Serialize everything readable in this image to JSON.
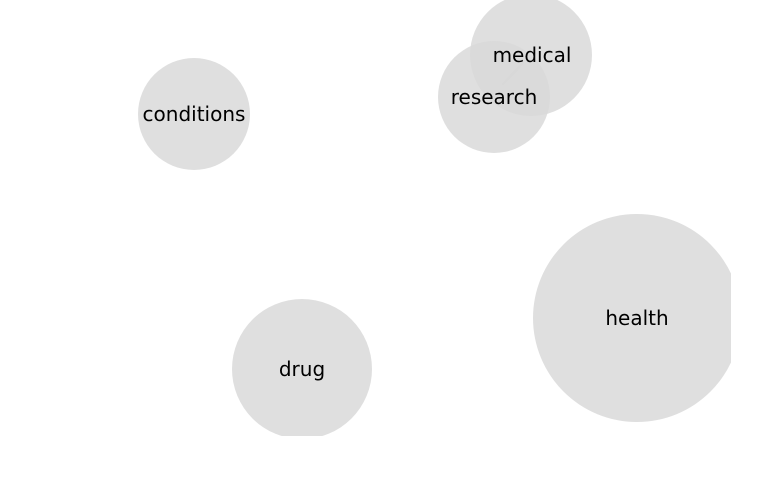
{
  "diagram": {
    "type": "bubble-network",
    "colors": {
      "node_fill": "#d9d9d9",
      "edge": "#888888",
      "label": "#000000"
    },
    "nodes": [
      {
        "id": "conditions",
        "label": "conditions"
      },
      {
        "id": "research",
        "label": "research"
      },
      {
        "id": "medical",
        "label": "medical"
      },
      {
        "id": "health",
        "label": "health"
      },
      {
        "id": "drug",
        "label": "drug"
      }
    ],
    "edges": [
      {
        "source": "research",
        "target": "medical"
      }
    ]
  }
}
